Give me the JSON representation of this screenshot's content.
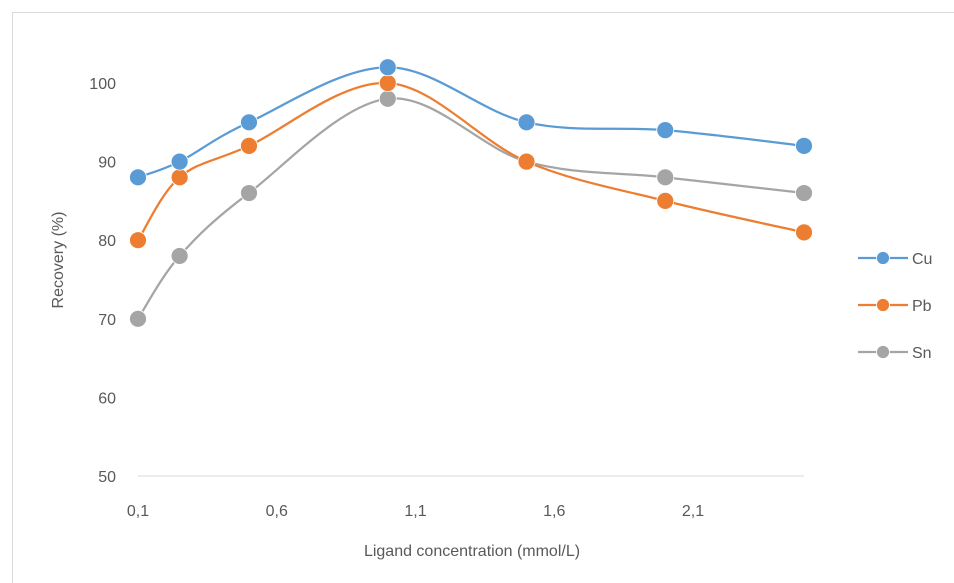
{
  "chart_data": {
    "type": "line",
    "title": "",
    "xlabel": "Ligand concentration (mmol/L)",
    "ylabel": "Recovery (%)",
    "xlim": [
      0.1,
      2.5
    ],
    "ylim": [
      50,
      100
    ],
    "x_ticks": [
      "0,1",
      "0,6",
      "1,1",
      "1,6",
      "2,1"
    ],
    "y_ticks": [
      "50",
      "60",
      "70",
      "80",
      "90",
      "100"
    ],
    "grid": false,
    "legend_position": "right",
    "smooth": true,
    "series": [
      {
        "name": "Cu",
        "color": "#5b9bd5",
        "x": [
          0.1,
          0.25,
          0.5,
          1.0,
          1.5,
          2.0,
          2.5
        ],
        "y": [
          88,
          90,
          95,
          102,
          95,
          94,
          92
        ]
      },
      {
        "name": "Pb",
        "color": "#ed7d31",
        "x": [
          0.1,
          0.25,
          0.5,
          1.0,
          1.5,
          2.0,
          2.5
        ],
        "y": [
          80,
          88,
          92,
          100,
          90,
          85,
          81
        ]
      },
      {
        "name": "Sn",
        "color": "#a5a5a5",
        "x": [
          0.1,
          0.25,
          0.5,
          1.0,
          1.5,
          2.0,
          2.5
        ],
        "y": [
          70,
          78,
          86,
          98,
          90,
          88,
          86
        ]
      }
    ]
  }
}
